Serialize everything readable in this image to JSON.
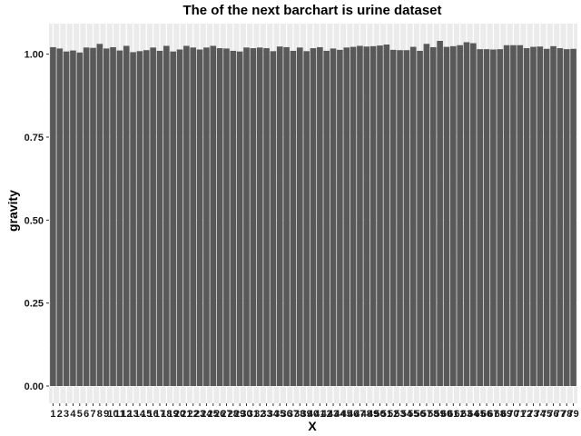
{
  "chart_data": {
    "type": "bar",
    "title": "The of the next barchart is urine dataset",
    "xlabel": "X",
    "ylabel": "gravity",
    "categories": [
      "1",
      "2",
      "3",
      "4",
      "5",
      "6",
      "7",
      "8",
      "9",
      "10",
      "11",
      "12",
      "13",
      "14",
      "15",
      "16",
      "17",
      "18",
      "19",
      "20",
      "21",
      "22",
      "23",
      "24",
      "25",
      "26",
      "27",
      "28",
      "29",
      "30",
      "31",
      "32",
      "33",
      "34",
      "35",
      "36",
      "37",
      "38",
      "39",
      "40",
      "41",
      "42",
      "43",
      "44",
      "45",
      "46",
      "47",
      "48",
      "49",
      "50",
      "51",
      "52",
      "53",
      "54",
      "55",
      "56",
      "57",
      "58",
      "59",
      "60",
      "61",
      "62",
      "63",
      "64",
      "65",
      "66",
      "67",
      "68",
      "69",
      "70",
      "71",
      "72",
      "73",
      "74",
      "75",
      "76",
      "77",
      "78",
      "79"
    ],
    "values": [
      1.021,
      1.017,
      1.008,
      1.011,
      1.005,
      1.02,
      1.019,
      1.031,
      1.017,
      1.021,
      1.011,
      1.025,
      1.006,
      1.009,
      1.012,
      1.02,
      1.01,
      1.025,
      1.008,
      1.014,
      1.025,
      1.02,
      1.014,
      1.02,
      1.025,
      1.018,
      1.017,
      1.01,
      1.008,
      1.02,
      1.018,
      1.02,
      1.018,
      1.009,
      1.023,
      1.021,
      1.01,
      1.02,
      1.009,
      1.018,
      1.021,
      1.01,
      1.017,
      1.013,
      1.02,
      1.022,
      1.025,
      1.023,
      1.024,
      1.026,
      1.029,
      1.013,
      1.012,
      1.012,
      1.022,
      1.01,
      1.031,
      1.021,
      1.04,
      1.022,
      1.024,
      1.027,
      1.036,
      1.033,
      1.015,
      1.015,
      1.014,
      1.015,
      1.027,
      1.027,
      1.027,
      1.018,
      1.022,
      1.023,
      1.016,
      1.024,
      1.018,
      1.015,
      1.016
    ],
    "ylim": [
      -0.052,
      1.092
    ],
    "yticks": [
      0.0,
      0.25,
      0.5,
      0.75,
      1.0
    ],
    "ytick_labels": [
      "0.00",
      "0.25",
      "0.50",
      "0.75",
      "1.00"
    ],
    "grid": true,
    "bar_color": "#595959",
    "panel_color": "#ebebeb",
    "gridline_color": "#ffffff"
  }
}
